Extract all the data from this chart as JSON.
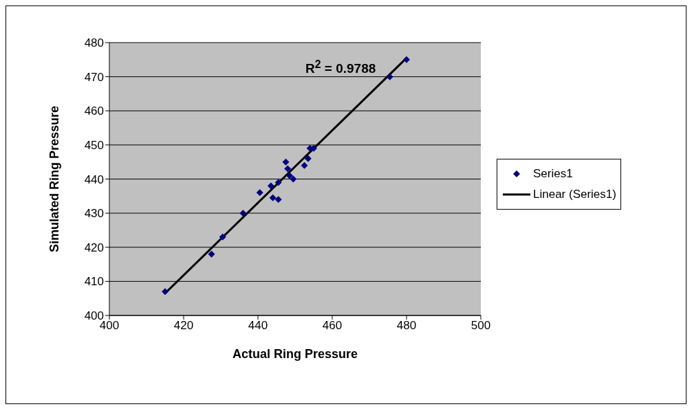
{
  "chart_data": {
    "type": "scatter",
    "xlabel": "Actual Ring Pressure",
    "ylabel": "Simulated Ring Pressure",
    "xlim": [
      400,
      500
    ],
    "xticks": [
      400,
      420,
      440,
      460,
      480,
      500
    ],
    "ylim": [
      400,
      480
    ],
    "yticks": [
      400,
      410,
      420,
      430,
      440,
      450,
      460,
      470,
      480
    ],
    "grid": "y",
    "legend": "right",
    "marker": "diamond",
    "annotations": [
      "R$^{2}$ = 0.9788"
    ],
    "series": [
      {
        "name": "Series1",
        "color": "#000080",
        "x": [
          415,
          427.5,
          430.5,
          436,
          440.5,
          443.5,
          444,
          445.5,
          445.5,
          447.5,
          448,
          448.5,
          449.5,
          452.5,
          453.5,
          454,
          455,
          475.5,
          480
        ],
        "values": [
          407,
          418,
          423,
          430,
          436,
          438,
          434.5,
          434,
          439,
          445,
          443,
          441,
          440,
          444,
          446,
          449,
          449,
          470,
          475
        ]
      },
      {
        "name": "Linear (Series1)",
        "type": "line",
        "color": "#000000",
        "marker": "none",
        "x": [
          415,
          480
        ],
        "values": [
          406.5,
          475.5
        ]
      }
    ]
  }
}
